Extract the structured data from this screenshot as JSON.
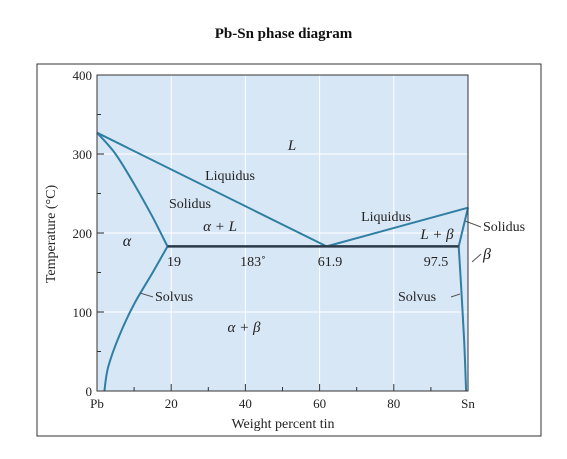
{
  "title": "Pb-Sn phase diagram",
  "axes": {
    "xlabel": "Weight percent tin",
    "ylabel": "Temperature (°C)",
    "xlim": [
      0,
      100
    ],
    "ylim": [
      0,
      400
    ],
    "y_ticks": [
      "0",
      "100",
      "200",
      "300",
      "400"
    ],
    "x_ticks": [
      "20",
      "40",
      "60",
      "80"
    ],
    "x_end_labels": {
      "left": "Pb",
      "right": "Sn"
    }
  },
  "colors": {
    "fill": "#d8e7f6",
    "line": "#2f7ea4",
    "frame": "#333333"
  },
  "chart_data": {
    "type": "phase_diagram",
    "melting_points": {
      "Pb": 327,
      "Sn": 232
    },
    "eutectic": {
      "temperature": 183,
      "composition": 61.9,
      "alpha_limit": 19,
      "beta_limit": 97.5
    },
    "curves": {
      "liquidus_left": [
        [
          0,
          327
        ],
        [
          61.9,
          183
        ]
      ],
      "liquidus_right": [
        [
          61.9,
          183
        ],
        [
          100,
          232
        ]
      ],
      "solidus_left": [
        [
          0,
          327
        ],
        [
          5,
          300
        ],
        [
          10,
          262
        ],
        [
          15,
          220
        ],
        [
          19,
          183
        ]
      ],
      "solidus_right": [
        [
          97.5,
          183
        ],
        [
          100,
          232
        ]
      ],
      "solvus_left": [
        [
          19,
          183
        ],
        [
          15,
          150
        ],
        [
          10,
          110
        ],
        [
          6,
          70
        ],
        [
          3,
          30
        ],
        [
          2,
          0
        ]
      ],
      "solvus_right": [
        [
          97.5,
          183
        ],
        [
          98.3,
          120
        ],
        [
          99,
          60
        ],
        [
          99.5,
          0
        ]
      ]
    }
  },
  "labels": {
    "L": "L",
    "liquidus_left": "Liquidus",
    "liquidus_right": "Liquidus",
    "solidus_left": "Solidus",
    "solidus_right": "Solidus",
    "alpha": "α",
    "alpha_plus_L": "α + L",
    "L_plus_beta": "L + β",
    "beta": "β",
    "alpha_plus_beta": "α + β",
    "solvus_left": "Solvus",
    "solvus_right": "Solvus",
    "eutectic_alpha": "19",
    "eutectic_temp": "183˚",
    "eutectic_comp": "61.9",
    "eutectic_beta": "97.5"
  }
}
